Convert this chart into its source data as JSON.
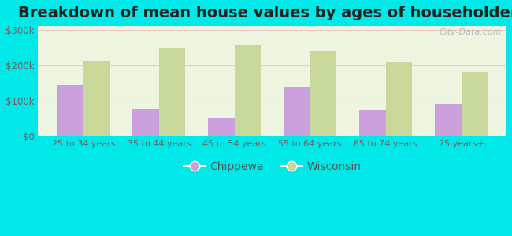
{
  "title": "Breakdown of mean house values by ages of householders",
  "categories": [
    "25 to 34 years",
    "35 to 44 years",
    "45 to 54 years",
    "55 to 64 years",
    "65 to 74 years",
    "75 years+"
  ],
  "chippewa": [
    143000,
    75000,
    50000,
    138000,
    73000,
    90000
  ],
  "wisconsin": [
    212000,
    247000,
    257000,
    240000,
    208000,
    182000
  ],
  "chippewa_color": "#c9a0dc",
  "wisconsin_color": "#c8d89a",
  "background_outer": "#00e8e8",
  "ylim": [
    0,
    310000
  ],
  "yticks": [
    0,
    100000,
    200000,
    300000
  ],
  "ytick_labels": [
    "$0",
    "$100k",
    "$200k",
    "$300k"
  ],
  "legend_chippewa": "Chippewa",
  "legend_wisconsin": "Wisconsin",
  "title_fontsize": 14,
  "bar_width": 0.35,
  "watermark": "City-Data.com"
}
